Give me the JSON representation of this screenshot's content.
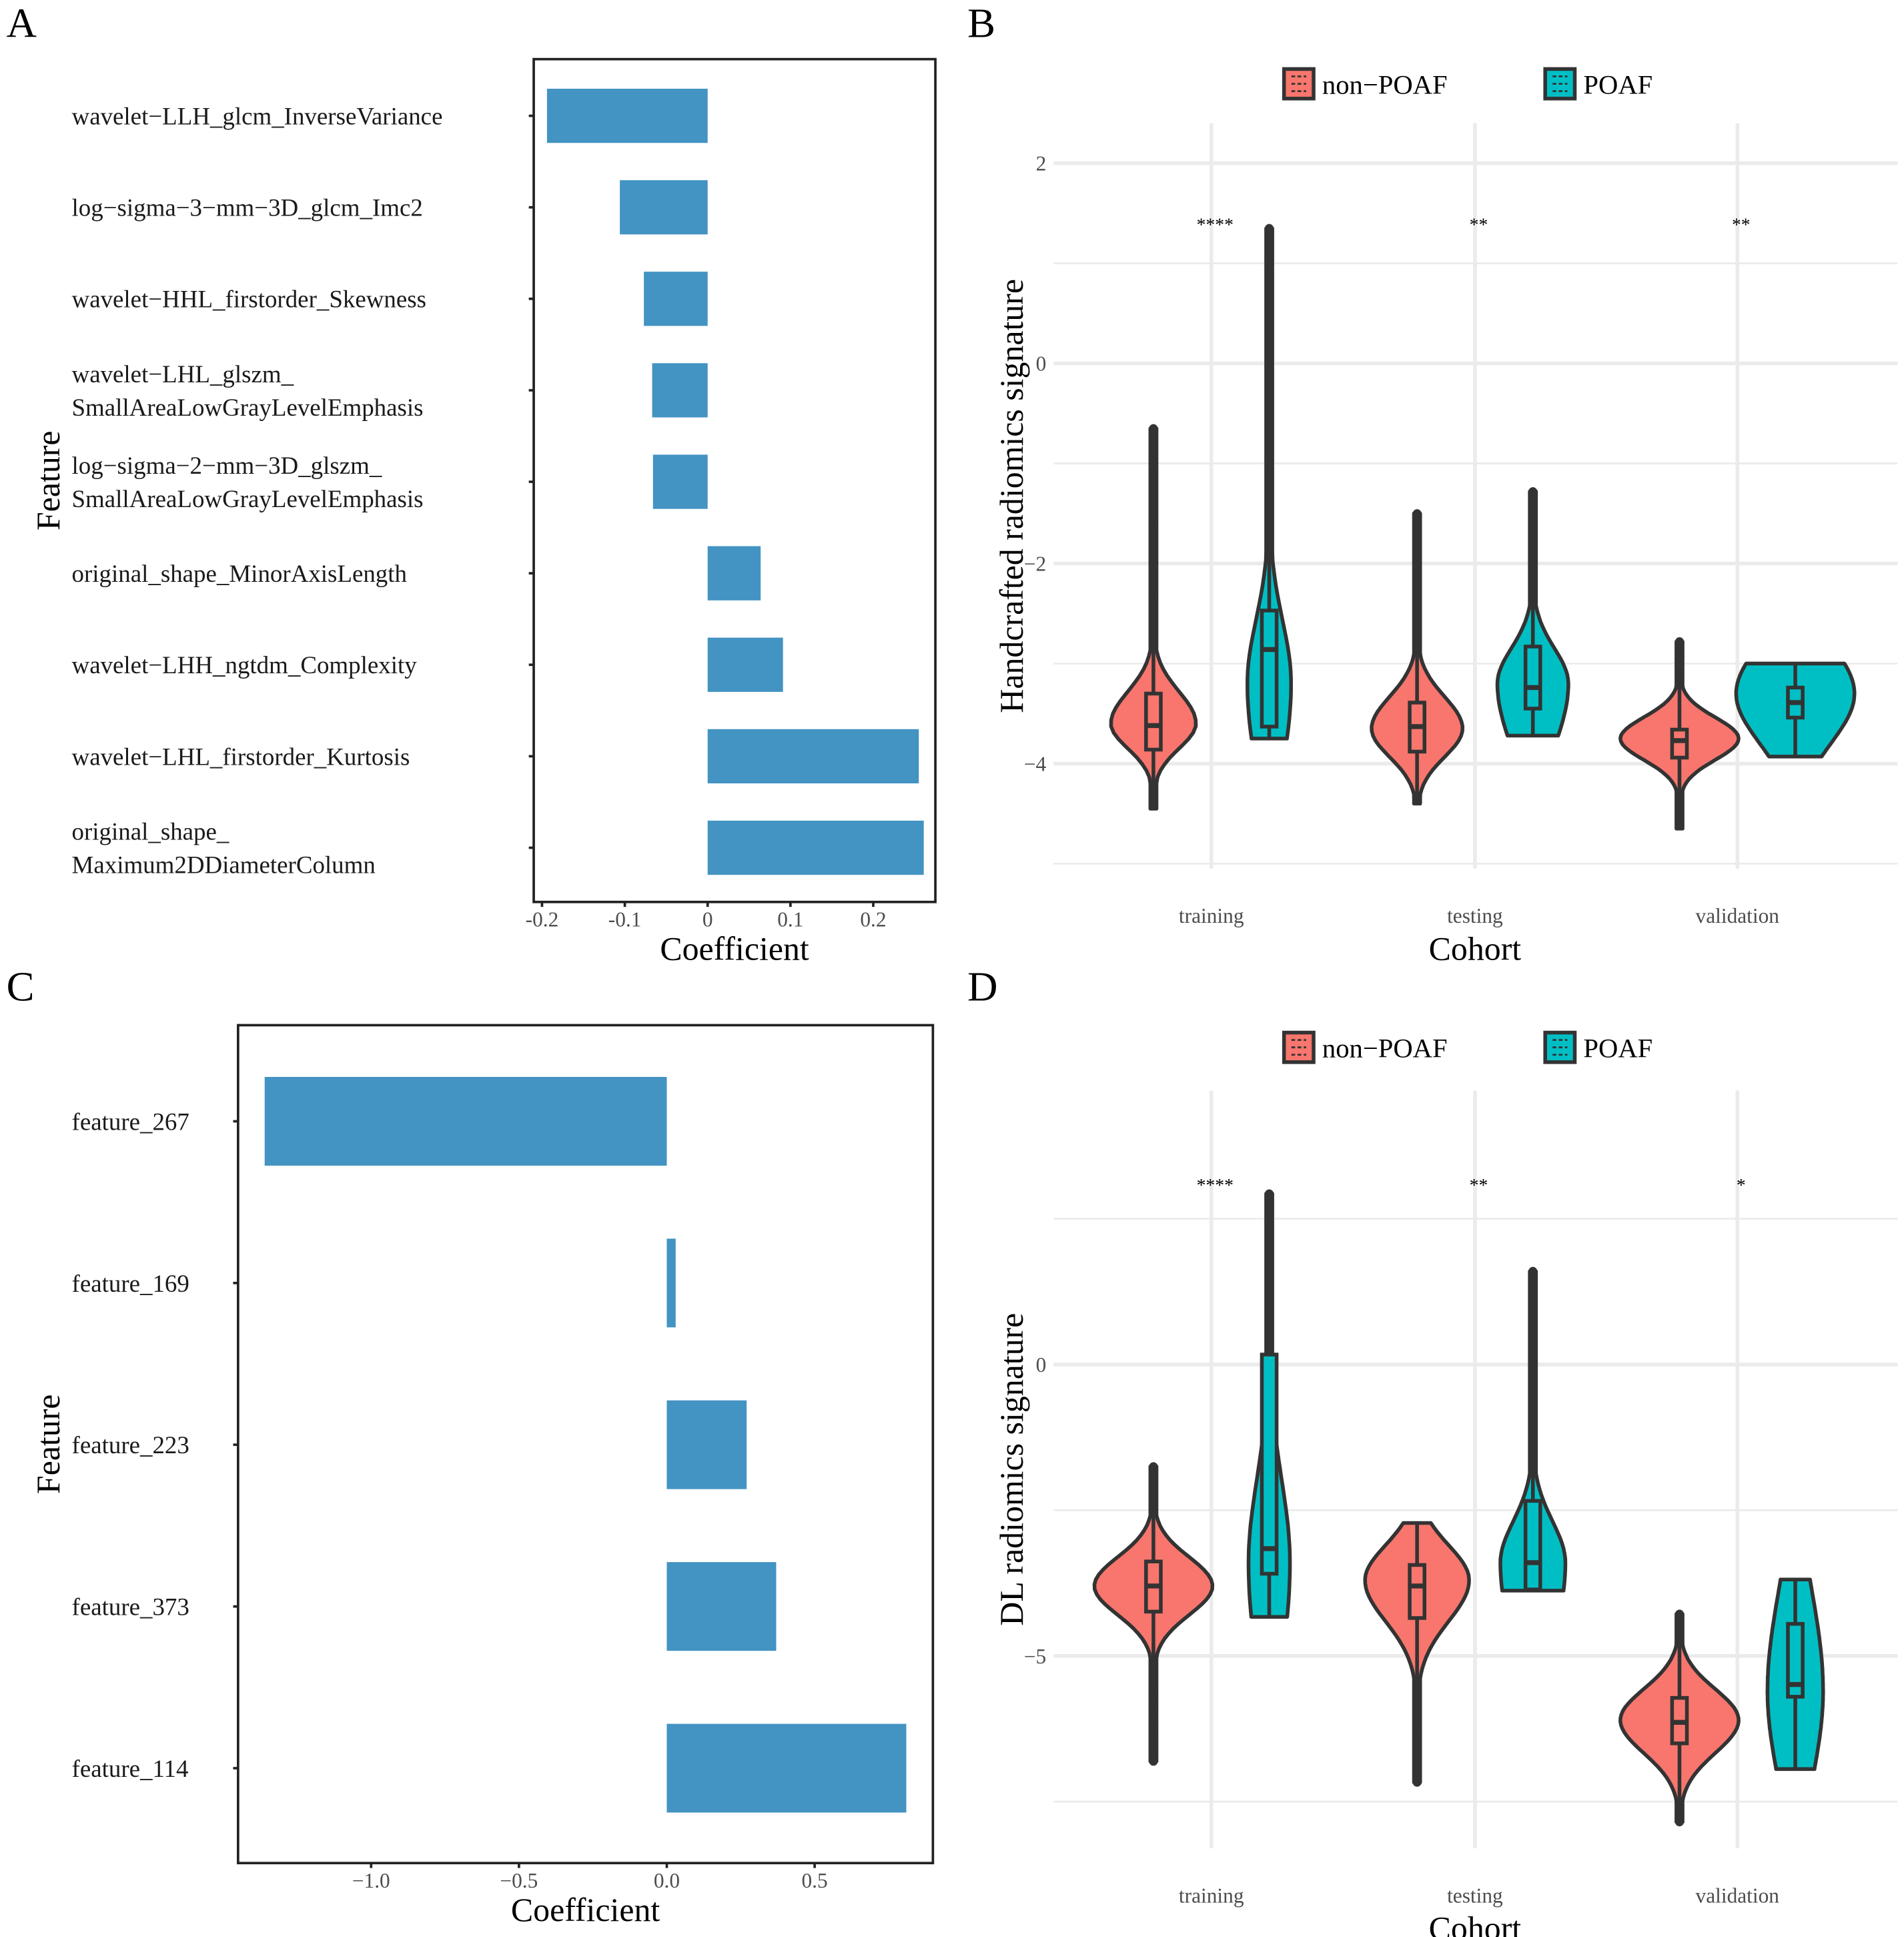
{
  "colors": {
    "bar": "#4393C3",
    "nonPOAF": "#F8766D",
    "POAF": "#00BFC4",
    "outline": "#333333",
    "grid": "#EBEBEB"
  },
  "panelA": {
    "letter": "A",
    "chart_data": {
      "type": "bar",
      "orientation": "horizontal",
      "xlabel": "Coefficient",
      "ylabel": "Feature",
      "xlim": [
        -0.21,
        0.275
      ],
      "xticks": [
        {
          "v": -0.2,
          "label": "-0.2"
        },
        {
          "v": -0.1,
          "label": "-0.1"
        },
        {
          "v": 0,
          "label": "0"
        },
        {
          "v": 0.1,
          "label": "0.1"
        },
        {
          "v": 0.2,
          "label": "0.2"
        }
      ],
      "categories": [
        {
          "lines": [
            "wavelet−LLH_glcm_InverseVariance"
          ],
          "value": -0.194
        },
        {
          "lines": [
            "log−sigma−3−mm−3D_glcm_Imc2"
          ],
          "value": -0.106
        },
        {
          "lines": [
            "wavelet−HHL_firstorder_Skewness"
          ],
          "value": -0.077
        },
        {
          "lines": [
            "wavelet−LHL_glszm_",
            "SmallAreaLowGrayLevelEmphasis"
          ],
          "value": -0.067
        },
        {
          "lines": [
            "log−sigma−2−mm−3D_glszm_",
            "SmallAreaLowGrayLevelEmphasis"
          ],
          "value": -0.066
        },
        {
          "lines": [
            "original_shape_MinorAxisLength"
          ],
          "value": 0.064
        },
        {
          "lines": [
            "wavelet−LHH_ngtdm_Complexity"
          ],
          "value": 0.091
        },
        {
          "lines": [
            "wavelet−LHL_firstorder_Kurtosis"
          ],
          "value": 0.255
        },
        {
          "lines": [
            "original_shape_",
            "Maximum2DDiameterColumn"
          ],
          "value": 0.261
        }
      ]
    }
  },
  "panelC": {
    "letter": "C",
    "chart_data": {
      "type": "bar",
      "orientation": "horizontal",
      "xlabel": "Coefficient",
      "ylabel": "Feature",
      "xlim": [
        -1.45,
        0.9
      ],
      "xticks": [
        {
          "v": -1.0,
          "label": "−1.0"
        },
        {
          "v": -0.5,
          "label": "−0.5"
        },
        {
          "v": 0,
          "label": "0.0"
        },
        {
          "v": 0.5,
          "label": "0.5"
        }
      ],
      "categories": [
        {
          "lines": [
            "feature_267"
          ],
          "value": -1.36
        },
        {
          "lines": [
            "feature_169"
          ],
          "value": 0.03
        },
        {
          "lines": [
            "feature_223"
          ],
          "value": 0.27
        },
        {
          "lines": [
            "feature_373"
          ],
          "value": 0.37
        },
        {
          "lines": [
            "feature_114"
          ],
          "value": 0.81
        }
      ]
    }
  },
  "panelB": {
    "letter": "B",
    "legend": [
      "non−POAF",
      "POAF"
    ],
    "chart_data": {
      "type": "violin",
      "xlabel": "Cohort",
      "ylabel": "Handcrafted radiomics signature",
      "ylim": [
        -5.05,
        2.4
      ],
      "yticks": [
        {
          "v": 2,
          "label": "2"
        },
        {
          "v": 0,
          "label": "0"
        },
        {
          "v": -2,
          "label": "−2"
        },
        {
          "v": -4,
          "label": "−4"
        }
      ],
      "minor_grid": [
        1,
        -1,
        -3,
        -5
      ],
      "categories": [
        "training",
        "testing",
        "validation"
      ],
      "significance": [
        "****",
        "**",
        "**"
      ],
      "sig_at": 1.4,
      "groups": [
        [
          {
            "series": "non-POAF",
            "min": -4.45,
            "max": -0.65,
            "q1": -3.86,
            "median": -3.62,
            "q3": -3.3,
            "mode": -3.6,
            "sd_low": 0.35,
            "sd_high": 0.45,
            "peak": 0.72,
            "outliers": [
              -0.65,
              -1.07,
              -1.6,
              -2.0,
              -2.3
            ]
          },
          {
            "series": "POAF",
            "min": -3.75,
            "max": 1.35,
            "q1": -3.63,
            "median": -2.86,
            "q3": -2.47,
            "mode": -3.2,
            "sd_low": 1.2,
            "sd_high": 0.9,
            "peak": 0.37,
            "outliers": [
              1.35
            ]
          }
        ],
        [
          {
            "series": "non-POAF",
            "min": -4.4,
            "max": -1.5,
            "q1": -3.88,
            "median": -3.63,
            "q3": -3.39,
            "mode": -3.65,
            "sd_low": 0.4,
            "sd_high": 0.45,
            "peak": 0.77,
            "outliers": [
              -1.5,
              -1.7,
              -2.0,
              -2.3
            ]
          },
          {
            "series": "POAF",
            "min": -3.72,
            "max": -1.28,
            "q1": -3.45,
            "median": -3.24,
            "q3": -2.83,
            "mode": -3.2,
            "sd_low": 0.9,
            "sd_high": 0.5,
            "peak": 0.6,
            "outliers": [
              -1.28
            ]
          }
        ],
        [
          {
            "series": "non-POAF",
            "min": -4.65,
            "max": -2.78,
            "q1": -3.94,
            "median": -3.77,
            "q3": -3.66,
            "mode": -3.75,
            "sd_low": 0.3,
            "sd_high": 0.3,
            "peak": 1.0,
            "outliers": [
              -2.78,
              -3.05,
              -4.5,
              -4.6
            ]
          },
          {
            "series": "POAF",
            "min": -3.93,
            "max": -3.0,
            "q1": -3.54,
            "median": -3.39,
            "q3": -3.24,
            "mode": -3.3,
            "sd_low": 0.7,
            "sd_high": 0.7,
            "peak": 1.0,
            "outliers": []
          }
        ]
      ]
    }
  },
  "panelD": {
    "letter": "D",
    "legend": [
      "non−POAF",
      "POAF"
    ],
    "chart_data": {
      "type": "violin",
      "xlabel": "Cohort",
      "ylabel": "DL radiomics signature",
      "ylim": [
        -8.3,
        4.7
      ],
      "yticks": [
        {
          "v": 0,
          "label": "0"
        },
        {
          "v": -5,
          "label": "−5"
        }
      ],
      "minor_grid": [
        2.5,
        -2.5,
        -7.5
      ],
      "categories": [
        "training",
        "testing",
        "validation"
      ],
      "significance": [
        "****",
        "**",
        "*"
      ],
      "sig_at": 3.1,
      "groups": [
        [
          {
            "series": "non-POAF",
            "min": -6.81,
            "max": -1.75,
            "q1": -4.24,
            "median": -3.8,
            "q3": -3.38,
            "mode": -3.8,
            "sd_low": 0.7,
            "sd_high": 0.7,
            "peak": 1.0,
            "outliers": [
              -1.75,
              -5.6,
              -5.9,
              -6.1,
              -6.3,
              -6.5,
              -6.81
            ]
          },
          {
            "series": "POAF",
            "min": -4.33,
            "max": 2.93,
            "q1": -3.59,
            "median": -3.16,
            "q3": 0.17,
            "mode": -3.4,
            "sd_low": 2.5,
            "sd_high": 2.0,
            "peak": 0.35,
            "outliers": [
              2.93
            ]
          }
        ],
        [
          {
            "series": "non-POAF",
            "min": -7.17,
            "max": -2.72,
            "q1": -4.35,
            "median": -3.8,
            "q3": -3.44,
            "mode": -3.7,
            "sd_low": 1.0,
            "sd_high": 0.85,
            "peak": 0.88,
            "outliers": [
              -6.3,
              -6.6,
              -7.17
            ]
          },
          {
            "series": "POAF",
            "min": -3.88,
            "max": 1.6,
            "q1": -3.86,
            "median": -3.4,
            "q3": -2.34,
            "mode": -3.4,
            "sd_low": 2.0,
            "sd_high": 1.0,
            "peak": 0.55,
            "outliers": [
              1.6
            ]
          }
        ],
        [
          {
            "series": "non-POAF",
            "min": -7.85,
            "max": -4.28,
            "q1": -6.5,
            "median": -6.14,
            "q3": -5.72,
            "mode": -6.1,
            "sd_low": 0.8,
            "sd_high": 0.75,
            "peak": 1.0,
            "outliers": [
              -4.28,
              -7.85
            ]
          },
          {
            "series": "POAF",
            "min": -6.94,
            "max": -3.69,
            "q1": -5.7,
            "median": -5.49,
            "q3": -4.45,
            "mode": -5.6,
            "sd_low": 2.2,
            "sd_high": 2.4,
            "peak": 0.47,
            "outliers": []
          }
        ]
      ]
    }
  }
}
